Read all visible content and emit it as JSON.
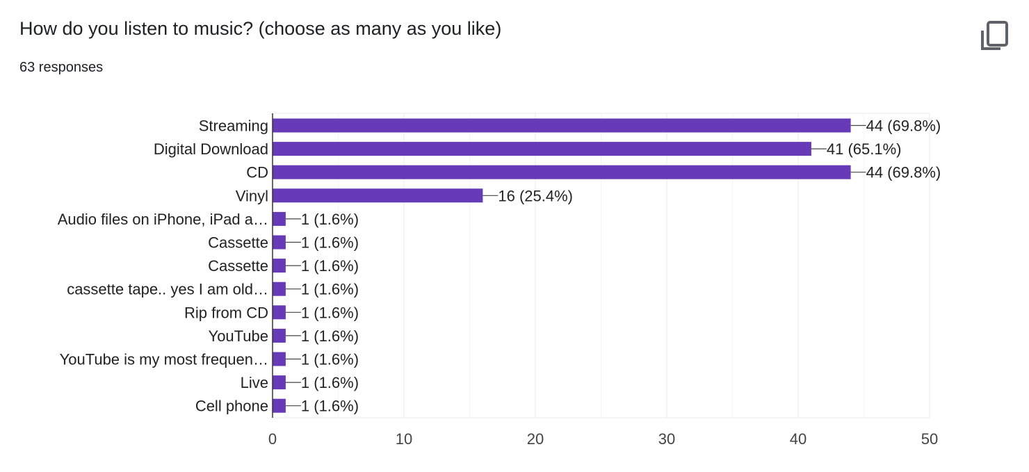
{
  "header": {
    "title": "How do you listen to music? (choose as many as you like)",
    "responses": "63 responses",
    "copy_icon": "copy-icon"
  },
  "chart_data": {
    "type": "bar",
    "orientation": "horizontal",
    "total": 63,
    "categories": [
      "Streaming",
      "Digital Download",
      "CD",
      "Vinyl",
      "Audio files on iPhone, iPad a…",
      "Cassette",
      "Cassette",
      "cassette tape.. yes I am old…",
      "Rip from CD",
      "YouTube",
      "YouTube is my most frequen…",
      "Live",
      "Cell phone"
    ],
    "values": [
      44,
      41,
      44,
      16,
      1,
      1,
      1,
      1,
      1,
      1,
      1,
      1,
      1
    ],
    "data_labels": [
      "44 (69.8%)",
      "41 (65.1%)",
      "44 (69.8%)",
      "16 (25.4%)",
      "1 (1.6%)",
      "1 (1.6%)",
      "1 (1.6%)",
      "1 (1.6%)",
      "1 (1.6%)",
      "1 (1.6%)",
      "1 (1.6%)",
      "1 (1.6%)",
      "1 (1.6%)"
    ],
    "xlim": [
      0,
      50
    ],
    "xticks": [
      "0",
      "10",
      "20",
      "30",
      "40",
      "50"
    ],
    "grid": true,
    "bar_color": "#673ab7",
    "title": "",
    "xlabel": "",
    "ylabel": ""
  }
}
